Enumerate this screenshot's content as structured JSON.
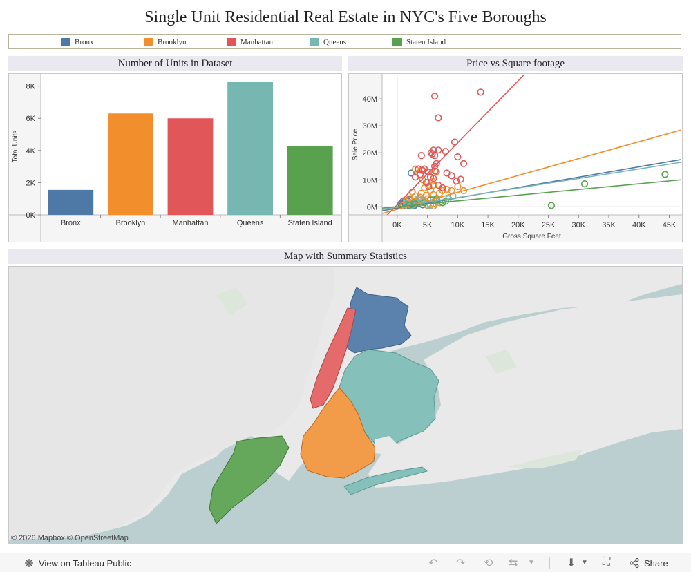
{
  "title": "Single Unit Residential Real Estate in NYC's Five Boroughs",
  "colors": {
    "bronx": "#4e79a7",
    "brooklyn": "#f28e2b",
    "manhattan": "#e15759",
    "queens": "#76b7b2",
    "staten_island": "#59a14f"
  },
  "legend": [
    {
      "label": "Bronx",
      "color": "#4e79a7"
    },
    {
      "label": "Brooklyn",
      "color": "#f28e2b"
    },
    {
      "label": "Manhattan",
      "color": "#e15759"
    },
    {
      "label": "Queens",
      "color": "#76b7b2"
    },
    {
      "label": "Staten Island",
      "color": "#59a14f"
    }
  ],
  "bar_panel": {
    "title": "Number of Units in Dataset"
  },
  "scatter_panel": {
    "title": "Price vs Square footage"
  },
  "map_panel": {
    "title": "Map with Summary Statistics",
    "attribution": "© 2026 Mapbox  © OpenStreetMap"
  },
  "chart_data": [
    {
      "type": "bar",
      "title": "Number of Units in Dataset",
      "xlabel": "",
      "ylabel": "Total Units",
      "categories": [
        "Bronx",
        "Brooklyn",
        "Manhattan",
        "Queens",
        "Staten Island"
      ],
      "values": [
        1550,
        6300,
        6000,
        8250,
        4250
      ],
      "colors": [
        "#4e79a7",
        "#f28e2b",
        "#e15759",
        "#76b7b2",
        "#59a14f"
      ],
      "ylim": [
        0,
        8500
      ],
      "yticks": [
        0,
        2000,
        4000,
        6000,
        8000
      ],
      "ytick_labels": [
        "0K",
        "2K",
        "4K",
        "6K",
        "8K"
      ]
    },
    {
      "type": "scatter",
      "title": "Price vs Square footage",
      "xlabel": "Gross Square Feet",
      "ylabel": "Sale Price",
      "xlim": [
        -2500,
        47000
      ],
      "ylim": [
        -3000000,
        49000000
      ],
      "xticks": [
        0,
        5000,
        10000,
        15000,
        20000,
        25000,
        30000,
        35000,
        40000,
        45000
      ],
      "xtick_labels": [
        "0K",
        "5K",
        "10K",
        "15K",
        "20K",
        "25K",
        "30K",
        "35K",
        "40K",
        "45K"
      ],
      "yticks": [
        0,
        10000000,
        20000000,
        30000000,
        40000000
      ],
      "ytick_labels": [
        "0M",
        "10M",
        "20M",
        "30M",
        "40M"
      ],
      "series": [
        {
          "name": "Bronx",
          "color": "#4e79a7",
          "points": [
            [
              2300,
              12500000
            ],
            [
              1200,
              1500000
            ],
            [
              1800,
              2000000
            ],
            [
              2500,
              900000
            ],
            [
              3000,
              1800000
            ],
            [
              800,
              600000
            ],
            [
              1500,
              300000
            ],
            [
              2000,
              2600000
            ],
            [
              3500,
              1200000
            ],
            [
              4200,
              700000
            ],
            [
              600,
              1100000
            ],
            [
              2800,
              400000
            ],
            [
              3200,
              2300000
            ],
            [
              1000,
              2200000
            ]
          ],
          "trend": [
            [
              -2500,
              -1500000
            ],
            [
              47000,
              17500000
            ]
          ]
        },
        {
          "name": "Brooklyn",
          "color": "#f28e2b",
          "points": [
            [
              3000,
              14000000
            ],
            [
              4000,
              13500000
            ],
            [
              5200,
              12800000
            ],
            [
              6500,
              13000000
            ],
            [
              2500,
              5500000
            ],
            [
              3000,
              4000000
            ],
            [
              4000,
              5000000
            ],
            [
              5000,
              3000000
            ],
            [
              5500,
              6000000
            ],
            [
              6000,
              4500000
            ],
            [
              6500,
              2500000
            ],
            [
              7000,
              5000000
            ],
            [
              3500,
              2500000
            ],
            [
              4500,
              7000000
            ],
            [
              5000,
              9000000
            ],
            [
              6000,
              8000000
            ],
            [
              7500,
              6000000
            ],
            [
              2000,
              3000000
            ],
            [
              1500,
              2000000
            ],
            [
              2500,
              1500000
            ],
            [
              3000,
              1000000
            ],
            [
              4000,
              1500000
            ],
            [
              5000,
              500000
            ],
            [
              6000,
              1200000
            ],
            [
              7000,
              1500000
            ],
            [
              6000,
              300000
            ],
            [
              8200,
              6500000
            ],
            [
              9000,
              6000000
            ],
            [
              10000,
              7500000
            ],
            [
              11000,
              6000000
            ],
            [
              3800,
              3500000
            ],
            [
              4800,
              4200000
            ],
            [
              1000,
              600000
            ],
            [
              5800,
              9500000
            ],
            [
              4200,
              10000000
            ]
          ],
          "trend": [
            [
              -2500,
              -2500000
            ],
            [
              47000,
              28500000
            ]
          ]
        },
        {
          "name": "Manhattan",
          "color": "#e15759",
          "points": [
            [
              6200,
              41000000
            ],
            [
              13800,
              42500000
            ],
            [
              6800,
              33000000
            ],
            [
              5600,
              20000000
            ],
            [
              6000,
              21000000
            ],
            [
              6800,
              21000000
            ],
            [
              5800,
              19500000
            ],
            [
              6200,
              19000000
            ],
            [
              4000,
              19000000
            ],
            [
              8000,
              20500000
            ],
            [
              9500,
              24000000
            ],
            [
              10000,
              18500000
            ],
            [
              11000,
              16000000
            ],
            [
              6500,
              16000000
            ],
            [
              6200,
              15000000
            ],
            [
              4500,
              14000000
            ],
            [
              3500,
              14000000
            ],
            [
              4200,
              13500000
            ],
            [
              5000,
              13000000
            ],
            [
              6300,
              13200000
            ],
            [
              8200,
              12500000
            ],
            [
              9000,
              11500000
            ],
            [
              9800,
              9500000
            ],
            [
              3800,
              12000000
            ],
            [
              5500,
              11000000
            ],
            [
              6800,
              8000000
            ],
            [
              10500,
              10200000
            ],
            [
              6000,
              10500000
            ],
            [
              4800,
              9000000
            ],
            [
              7500,
              7000000
            ],
            [
              3000,
              11000000
            ],
            [
              5200,
              7500000
            ]
          ],
          "trend": [
            [
              -2500,
              -5000000
            ],
            [
              21000,
              49000000
            ]
          ]
        },
        {
          "name": "Queens",
          "color": "#76b7b2",
          "points": [
            [
              9200,
              4000000
            ],
            [
              8500,
              3000000
            ],
            [
              4000,
              2500000
            ],
            [
              3000,
              1500000
            ],
            [
              5000,
              1000000
            ],
            [
              6500,
              2000000
            ],
            [
              2000,
              800000
            ],
            [
              2500,
              600000
            ],
            [
              4500,
              1800000
            ],
            [
              7500,
              1500000
            ],
            [
              5500,
              400000
            ],
            [
              3500,
              3200000
            ],
            [
              1500,
              1200000
            ],
            [
              6000,
              2800000
            ]
          ],
          "trend": [
            [
              -2500,
              -1000000
            ],
            [
              47000,
              16500000
            ]
          ]
        },
        {
          "name": "Staten Island",
          "color": "#59a14f",
          "points": [
            [
              44300,
              12000000
            ],
            [
              31000,
              8500000
            ],
            [
              25500,
              500000
            ],
            [
              7500,
              1500000
            ],
            [
              6500,
              3000000
            ],
            [
              3000,
              1000000
            ],
            [
              4500,
              1500000
            ],
            [
              5500,
              2500000
            ],
            [
              8000,
              2000000
            ],
            [
              2000,
              500000
            ]
          ],
          "trend": [
            [
              -2500,
              -500000
            ],
            [
              47000,
              10000000
            ]
          ]
        }
      ]
    }
  ],
  "footer": {
    "view_label": "View on Tableau Public",
    "share_label": "Share"
  }
}
